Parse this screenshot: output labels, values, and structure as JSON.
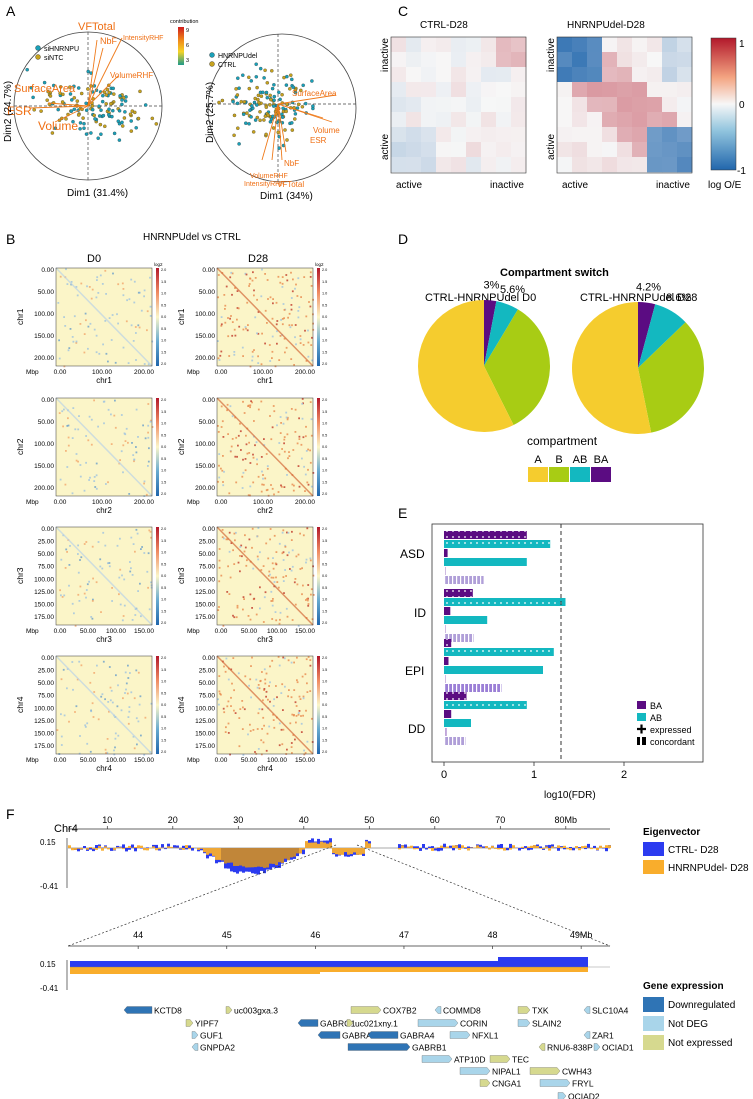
{
  "panels": {
    "a": "A",
    "b": "B",
    "c": "C",
    "d": "D",
    "e": "E",
    "f": "F"
  },
  "panelA": {
    "left": {
      "legend": [
        "siHNRNPU",
        "siNTC"
      ],
      "vectors": [
        "VFTotal",
        "NbF",
        "IntensityRHF",
        "VolumeRHF",
        "SurfaceArea",
        "ESR",
        "Volume"
      ],
      "xlabel": "Dim1 (31.4%)",
      "ylabel": "Dim2 (24.7%)"
    },
    "right": {
      "legend": [
        "HNRNPUdel",
        "CTRL"
      ],
      "vectors": [
        "SurfaceArea",
        "Volume",
        "ESR",
        "NbF",
        "VolumeRHF",
        "IntensityRHF",
        "VFTotal"
      ],
      "xlabel": "Dim1 (34%)",
      "ylabel": "Dim2 (25.7%)"
    },
    "colorbar": {
      "title": "contribution",
      "ticks": [
        "9",
        "6",
        "3"
      ],
      "colors": [
        "#d01c1c",
        "#f08a1a",
        "#f5d327",
        "#1f9a8a"
      ]
    }
  },
  "panelB": {
    "title": "HNRNPUdel vs CTRL",
    "col_titles": [
      "D0",
      "D28"
    ],
    "xaxis_label": "Mbp",
    "colorbar_title": "log2",
    "colorbar_ticks": [
      "2.0",
      "1.5",
      "1.0",
      "0.5",
      "0.0",
      "0.5",
      "1.0",
      "1.5",
      "2.0"
    ],
    "rows": [
      {
        "chr": "chr1",
        "xlabel": "chr1",
        "yticks": [
          "0.00",
          "50.00",
          "100.00",
          "150.00",
          "200.00"
        ],
        "xticks": [
          "0.00",
          "100.00",
          "200.00"
        ]
      },
      {
        "chr": "chr2",
        "xlabel": "chr2",
        "yticks": [
          "0.00",
          "50.00",
          "100.00",
          "150.00",
          "200.00"
        ],
        "xticks": [
          "0.00",
          "100.00",
          "200.00"
        ]
      },
      {
        "chr": "chr3",
        "xlabel": "chr3",
        "yticks": [
          "0.00",
          "25.00",
          "50.00",
          "75.00",
          "100.00",
          "125.00",
          "150.00",
          "175.00"
        ],
        "xticks": [
          "0.00",
          "50.00",
          "100.00",
          "150.00"
        ]
      },
      {
        "chr": "chr4",
        "xlabel": "chr4",
        "yticks": [
          "0.00",
          "25.00",
          "50.00",
          "75.00",
          "100.00",
          "125.00",
          "150.00",
          "175.00"
        ],
        "xticks": [
          "0.00",
          "50.00",
          "100.00",
          "150.00"
        ]
      }
    ]
  },
  "panelC": {
    "titles": [
      "CTRL-D28",
      "HNRNPUdel-D28"
    ],
    "xticks": [
      "active",
      "inactive"
    ],
    "yticks": [
      "inactive",
      "active"
    ],
    "colorbar_ticks": [
      "1",
      "0",
      "-1"
    ],
    "colorbar_label": "log O/E"
  },
  "panelD": {
    "title": "Compartment switch",
    "legend_title": "compartment",
    "chart_data": {
      "type": "pie",
      "categories": [
        "A",
        "B",
        "AB",
        "BA"
      ],
      "colors": [
        "#f5cc2e",
        "#a8cc14",
        "#13b8c0",
        "#5b0c82"
      ],
      "charts": [
        {
          "title": "CTRL-HNRNPUdel D0",
          "values": [
            57.4,
            34.0,
            5.6,
            3.0
          ],
          "labels": [
            "",
            "",
            "5.6%",
            "3%"
          ]
        },
        {
          "title": "CTRL-HNRNPUdel D28",
          "values": [
            53.2,
            34.0,
            8.6,
            4.2
          ],
          "labels": [
            "",
            "",
            "8.6%",
            "4.2%"
          ]
        }
      ]
    }
  },
  "panelE": {
    "xlabel": "log10(FDR)",
    "xticks": [
      "0",
      "1",
      "2"
    ],
    "threshold": 1.3,
    "legend": [
      "BA",
      "AB",
      "expressed",
      "concordant"
    ],
    "chart_data": {
      "type": "bar",
      "orientation": "horizontal",
      "categories": [
        "ASD",
        "ID",
        "EPI",
        "DD"
      ],
      "xlim": [
        -0.05,
        2.6
      ],
      "series": [
        {
          "name": "BA all",
          "values": [
            0.92,
            0.32,
            0.08,
            0.25
          ]
        },
        {
          "name": "AB all",
          "values": [
            1.18,
            1.35,
            1.22,
            0.92
          ]
        },
        {
          "name": "BA expressed",
          "values": [
            0.04,
            0.07,
            0.05,
            0.08
          ]
        },
        {
          "name": "AB expressed",
          "values": [
            0.92,
            0.48,
            1.1,
            0.3
          ]
        },
        {
          "name": "BA concordant",
          "values": [
            0.02,
            0.02,
            0.02,
            0.03
          ]
        },
        {
          "name": "AB concordant",
          "values": [
            0.44,
            0.33,
            0.64,
            0.24
          ]
        }
      ]
    }
  },
  "panelF": {
    "chrom": "Chr4",
    "top_ticks": [
      "10",
      "20",
      "30",
      "40",
      "50",
      "60",
      "70",
      "80Mb"
    ],
    "zoom_ticks": [
      "44",
      "45",
      "46",
      "47",
      "48",
      "49Mb"
    ],
    "ylabels": [
      "0.15",
      "-0.41"
    ],
    "eig_legend_title": "Eigenvector",
    "eig_legend": [
      {
        "label": "CTRL- D28",
        "color": "#2b3bf0"
      },
      {
        "label": "HNRNPUdel- D28",
        "color": "#f9ad2c"
      }
    ],
    "expr_legend_title": "Gene expression",
    "expr_legend": [
      {
        "label": "Downregulated",
        "color": "#2f74b5"
      },
      {
        "label": "Not DEG",
        "color": "#a9d5ea"
      },
      {
        "label": "Not expressed",
        "color": "#d6d98f"
      }
    ],
    "genes": [
      "KCTD8",
      "YIPF7",
      "GUF1",
      "GNPDA2",
      "uc003gxa.3",
      "GABRG1",
      "GABRA2",
      "uc021xny.1",
      "COX7B2",
      "GABRA4",
      "GABRB1",
      "ATP10D",
      "COMMD8",
      "CORIN",
      "NFXL1",
      "TEC",
      "NIPAL1",
      "CNGA1",
      "TXK",
      "SLAIN2",
      "RNU6-838P",
      "SLC10A4",
      "ZAR1",
      "OCIAD1",
      "CWH43",
      "FRYL",
      "OCIAD2"
    ]
  }
}
